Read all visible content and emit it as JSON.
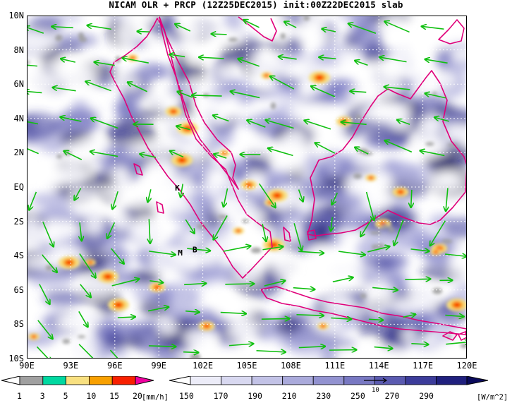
{
  "title": "NICAM OLR + PRCP (12Z25DEC2015) init:00Z22DEC2015 slab",
  "axes": {
    "y_ticks": [
      "10N",
      "8N",
      "6N",
      "4N",
      "2N",
      "EQ",
      "2S",
      "4S",
      "6S",
      "8S",
      "10S"
    ],
    "x_ticks": [
      "90E",
      "93E",
      "96E",
      "99E",
      "102E",
      "105E",
      "108E",
      "111E",
      "114E",
      "117E",
      "120E"
    ],
    "lat_range": [
      -10,
      10
    ],
    "lon_range": [
      90,
      120
    ],
    "grid": "dashed"
  },
  "station_labels": [
    {
      "text": "K",
      "lon": 100.1,
      "lat": -0.2
    },
    {
      "text": "M",
      "lon": 100.3,
      "lat": -4.0
    },
    {
      "text": "B",
      "lon": 101.3,
      "lat": -3.8
    }
  ],
  "precip_colorbar": {
    "labels": [
      "1",
      "3",
      "5",
      "10",
      "15",
      "20"
    ],
    "unit": "[mm/h]",
    "colors": [
      "#ffffff",
      "#a0a0a0",
      "#00d8a0",
      "#f8e080",
      "#f8a000",
      "#f82000",
      "#f000a0"
    ]
  },
  "olr_colorbar": {
    "labels": [
      "150",
      "170",
      "190",
      "210",
      "230",
      "250",
      "270",
      "290"
    ],
    "unit": "[W/m^2]",
    "colors": [
      "#ffffff",
      "#ececf8",
      "#d8d8f0",
      "#c2c2e6",
      "#aaaadb",
      "#9292d0",
      "#7878c2",
      "#5a5ab0",
      "#3c3c9a",
      "#20207e",
      "#0a0a5c"
    ],
    "vector_key": "10"
  },
  "colors": {
    "coast": "#e0007a",
    "wind_vector": "#10c010"
  }
}
